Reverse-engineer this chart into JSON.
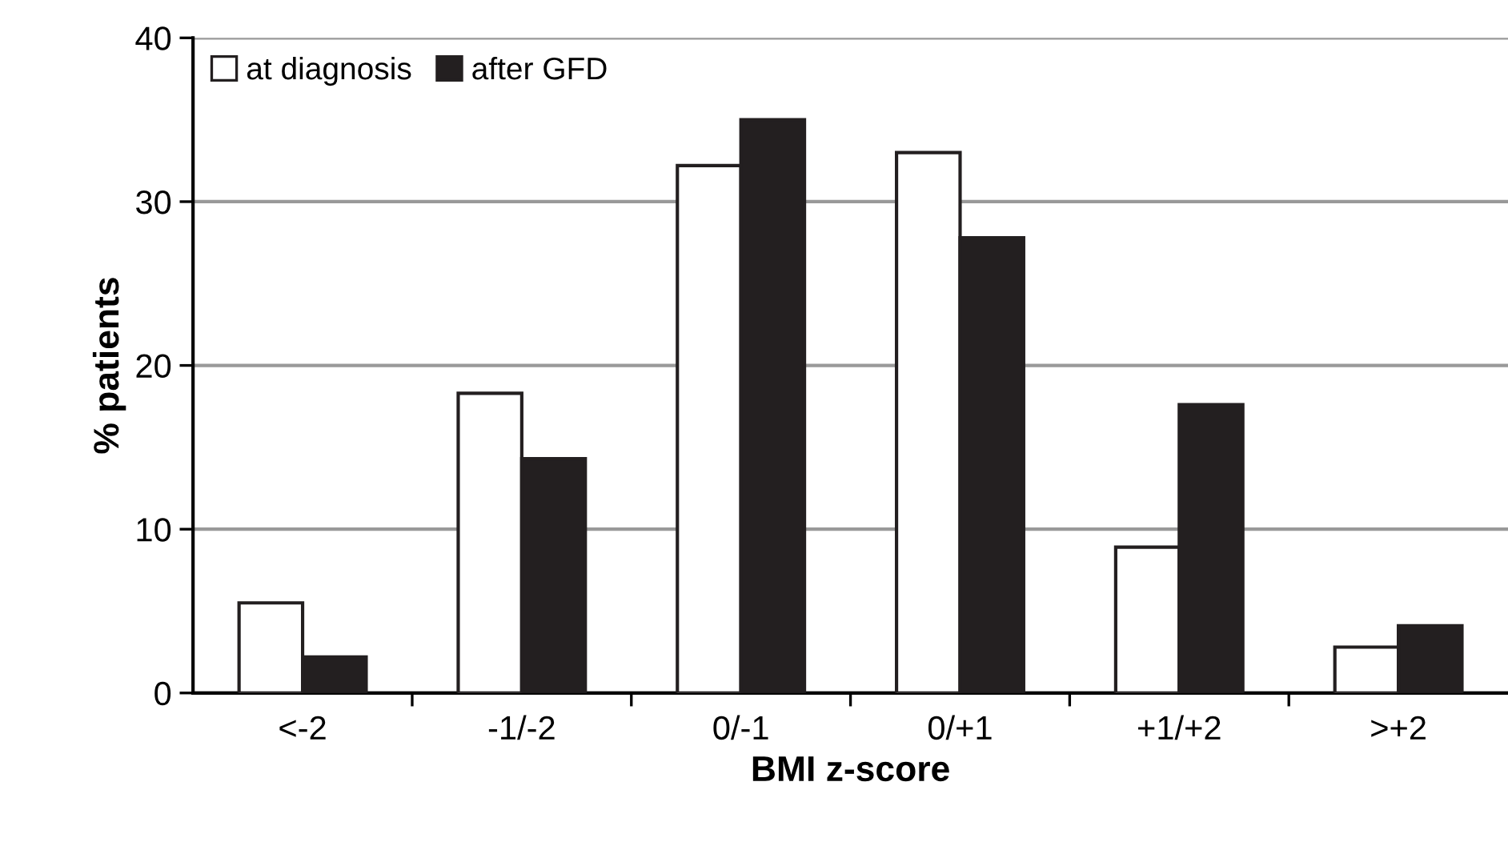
{
  "chart_data": {
    "type": "bar",
    "xlabel": "BMI z-score",
    "ylabel": "% patients",
    "categories": [
      "<-2",
      "-1/-2",
      "0/-1",
      "0/+1",
      "+1/+2",
      ">+2"
    ],
    "series": [
      {
        "name": "at diagnosis",
        "color": "#ffffff",
        "values": [
          5.5,
          18.3,
          32.2,
          33.0,
          8.9,
          2.8
        ]
      },
      {
        "name": "after GFD",
        "color": "#231f20",
        "values": [
          2.2,
          14.3,
          35.0,
          27.8,
          17.6,
          4.1
        ]
      }
    ],
    "ylim": [
      0,
      40
    ],
    "yticks": [
      0,
      10,
      20,
      30,
      40
    ],
    "grid": "y",
    "legend": "top left"
  }
}
